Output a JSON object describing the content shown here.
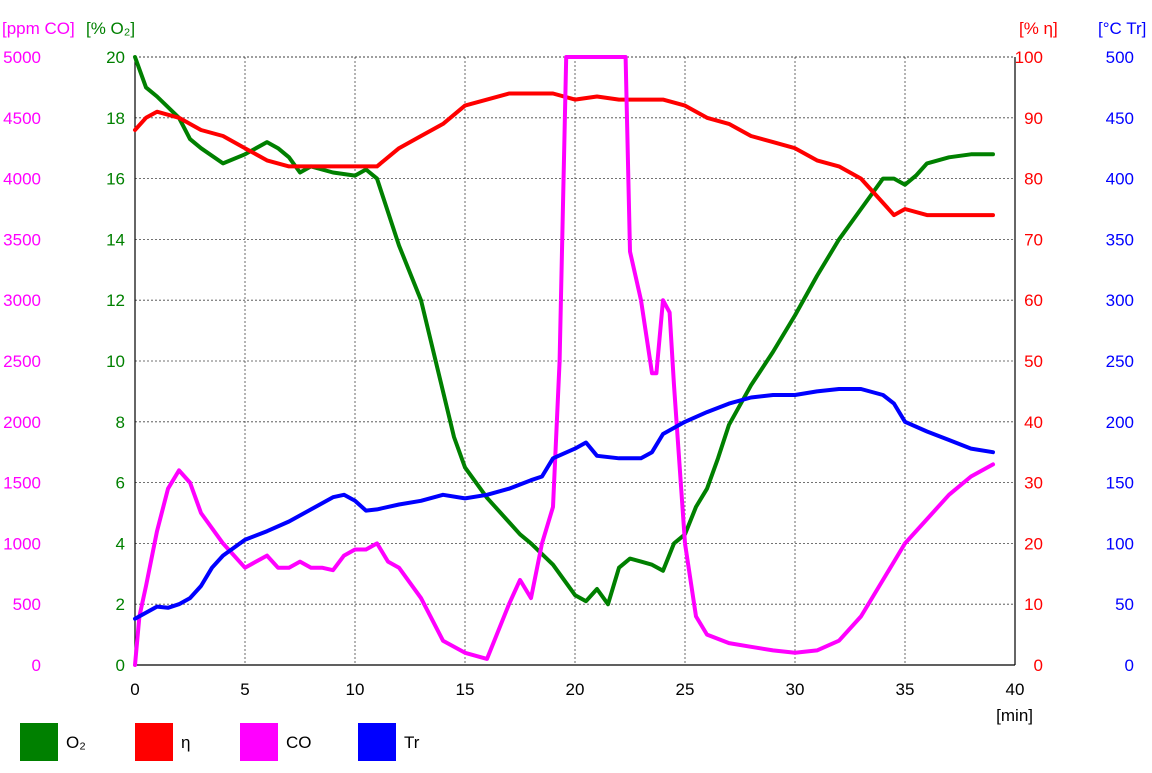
{
  "chart_data": {
    "type": "line",
    "title": "",
    "xlabel": "[min]",
    "x_ticks": [
      "0",
      "5",
      "10",
      "15",
      "20",
      "25",
      "30",
      "35",
      "40"
    ],
    "xlim": [
      0,
      40
    ],
    "grid": true,
    "legend_placement": "bottom",
    "axes": [
      {
        "id": "co",
        "label": "[ppm CO]",
        "side": "left",
        "color": "#ff00ff",
        "ylim": [
          0,
          5000
        ],
        "ticks": [
          "0",
          "500",
          "1000",
          "1500",
          "2000",
          "2500",
          "3000",
          "3500",
          "4000",
          "4500",
          "5000"
        ]
      },
      {
        "id": "o2",
        "label": "[% O₂]",
        "side": "left",
        "color": "#008000",
        "ylim": [
          0,
          20
        ],
        "ticks": [
          "0",
          "2",
          "4",
          "6",
          "8",
          "10",
          "12",
          "14",
          "16",
          "18",
          "20"
        ]
      },
      {
        "id": "eta",
        "label": "[% η]",
        "side": "right",
        "color": "#ff0000",
        "ylim": [
          0,
          100
        ],
        "ticks": [
          "0",
          "10",
          "20",
          "30",
          "40",
          "50",
          "60",
          "70",
          "80",
          "90",
          "100"
        ]
      },
      {
        "id": "tr",
        "label": "[°C Tr]",
        "side": "right",
        "color": "#0000ff",
        "ylim": [
          0,
          500
        ],
        "ticks": [
          "0",
          "50",
          "100",
          "150",
          "200",
          "250",
          "300",
          "350",
          "400",
          "450",
          "500"
        ]
      }
    ],
    "series": [
      {
        "name": "O₂",
        "axis": "o2",
        "color": "#008000",
        "x": [
          0,
          0.5,
          1,
          2,
          2.5,
          3,
          4,
          5,
          6,
          6.5,
          7,
          7.5,
          8,
          9,
          10,
          10.5,
          11,
          12,
          13,
          14,
          14.5,
          15,
          15.5,
          16,
          17,
          17.5,
          18,
          19,
          20,
          20.5,
          21,
          21.5,
          22,
          22.5,
          23,
          23.5,
          24,
          24.5,
          25,
          25.5,
          26,
          26.5,
          27,
          28,
          29,
          30,
          31,
          32,
          33,
          34,
          34.5,
          35,
          35.5,
          36,
          37,
          38,
          39
        ],
        "y": [
          20,
          19,
          18.7,
          18,
          17.3,
          17,
          16.5,
          16.8,
          17.2,
          17,
          16.7,
          16.2,
          16.4,
          16.2,
          16.1,
          16.3,
          16,
          13.8,
          12,
          9,
          7.5,
          6.5,
          6,
          5.5,
          4.7,
          4.3,
          4,
          3.3,
          2.3,
          2.1,
          2.5,
          2,
          3.2,
          3.5,
          3.4,
          3.3,
          3.1,
          4,
          4.3,
          5.2,
          5.8,
          6.8,
          7.9,
          9.2,
          10.3,
          11.5,
          12.8,
          14,
          15,
          16,
          16,
          15.8,
          16.1,
          16.5,
          16.7,
          16.8,
          16.8
        ]
      },
      {
        "name": "η",
        "axis": "eta",
        "color": "#ff0000",
        "x": [
          0,
          0.5,
          1,
          2,
          3,
          4,
          5,
          6,
          7,
          8,
          9,
          10,
          10.5,
          11,
          12,
          13,
          14,
          15,
          16,
          17,
          17.5,
          18,
          19,
          20,
          21,
          22,
          23,
          24,
          25,
          26,
          27,
          28,
          29,
          30,
          31,
          32,
          33,
          34,
          34.5,
          35,
          36,
          37,
          38,
          39
        ],
        "y": [
          88,
          90,
          91,
          90,
          88,
          87,
          85,
          83,
          82,
          82,
          82,
          82,
          82,
          82,
          85,
          87,
          89,
          92,
          93,
          94,
          94,
          94,
          94,
          93,
          93.5,
          93,
          93,
          93,
          92,
          90,
          89,
          87,
          86,
          85,
          83,
          82,
          80,
          76,
          74,
          75,
          74,
          74,
          74,
          74
        ]
      },
      {
        "name": "CO",
        "axis": "co",
        "color": "#ff00ff",
        "x": [
          0,
          0.2,
          0.5,
          1,
          1.5,
          2,
          2.5,
          3,
          4,
          5,
          5.5,
          6,
          6.5,
          7,
          7.5,
          8,
          8.5,
          9,
          9.5,
          10,
          10.5,
          11,
          11.5,
          12,
          13,
          14,
          15,
          16,
          17,
          17.5,
          18,
          18.5,
          19,
          19.3,
          19.6,
          22.3,
          22.5,
          23,
          23.5,
          23.7,
          24,
          24.3,
          24.5,
          25,
          25.5,
          26,
          27,
          28,
          29,
          30,
          31,
          32,
          33,
          34,
          35,
          36,
          37,
          38,
          39
        ],
        "y": [
          0,
          400,
          650,
          1100,
          1450,
          1600,
          1500,
          1250,
          1000,
          800,
          850,
          900,
          800,
          800,
          850,
          800,
          800,
          780,
          900,
          950,
          950,
          1000,
          850,
          800,
          550,
          200,
          100,
          50,
          500,
          700,
          550,
          1000,
          1300,
          2500,
          5000,
          5000,
          3400,
          3000,
          2400,
          2400,
          3000,
          2900,
          2300,
          1000,
          400,
          250,
          180,
          150,
          120,
          100,
          120,
          200,
          400,
          700,
          1000,
          1200,
          1400,
          1550,
          1650
        ]
      },
      {
        "name": "Tr",
        "axis": "tr",
        "color": "#0000ff",
        "x": [
          0,
          1,
          1.5,
          2,
          2.5,
          3,
          3.5,
          4,
          5,
          6,
          7,
          8,
          9,
          9.5,
          10,
          10.5,
          11,
          12,
          13,
          14,
          15,
          16,
          17,
          18,
          18.5,
          19,
          20,
          20.5,
          21,
          22,
          23,
          23.5,
          24,
          24.5,
          25,
          26,
          27,
          28,
          29,
          30,
          31,
          32,
          33,
          34,
          34.5,
          35,
          36,
          37,
          38,
          39
        ],
        "y": [
          38,
          48,
          47,
          50,
          55,
          65,
          80,
          90,
          103,
          110,
          118,
          128,
          138,
          140,
          135,
          127,
          128,
          132,
          135,
          140,
          137,
          140,
          145,
          152,
          155,
          170,
          178,
          183,
          172,
          170,
          170,
          175,
          190,
          195,
          200,
          208,
          215,
          220,
          222,
          222,
          225,
          227,
          227,
          222,
          215,
          200,
          192,
          185,
          178,
          175
        ]
      }
    ]
  }
}
